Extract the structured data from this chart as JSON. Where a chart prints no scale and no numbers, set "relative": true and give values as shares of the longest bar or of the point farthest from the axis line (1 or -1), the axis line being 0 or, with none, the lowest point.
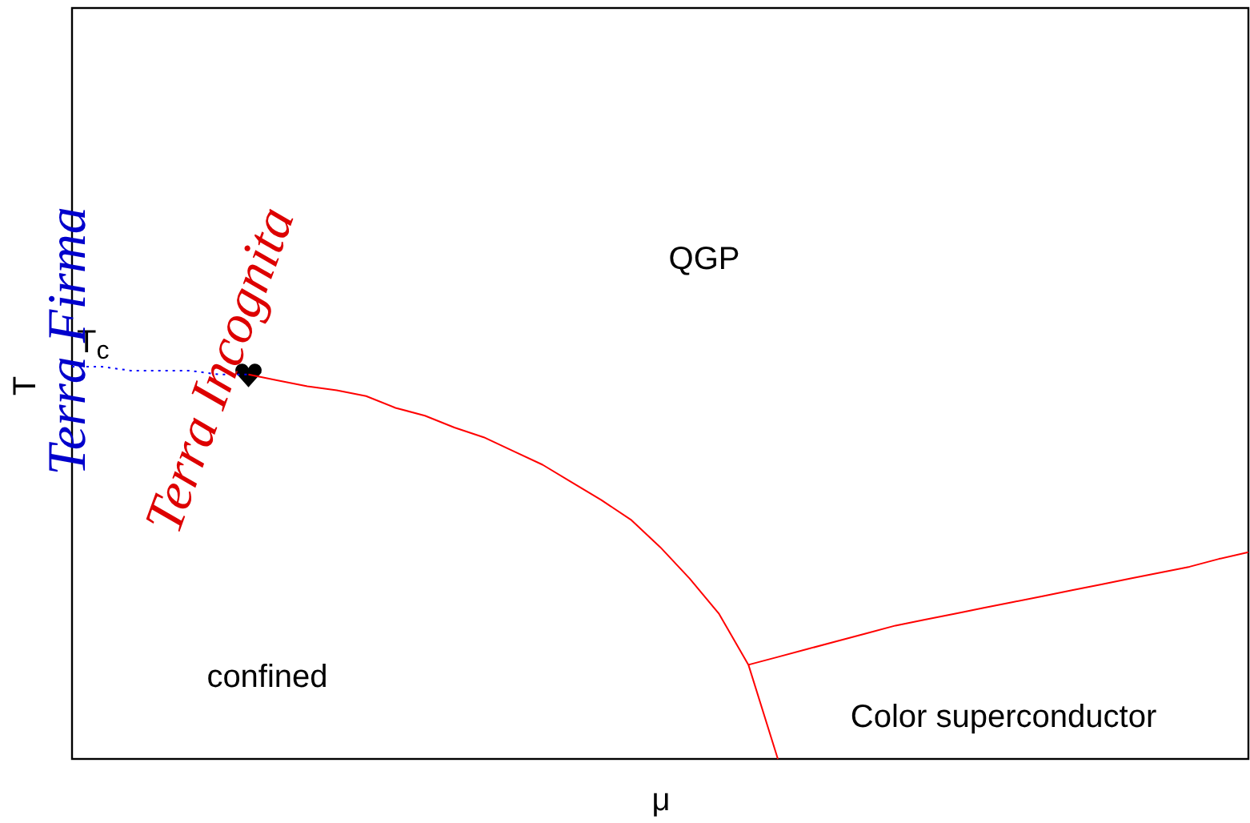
{
  "chart_data": {
    "type": "line",
    "relative": true,
    "xlabel": "μ",
    "ylabel": "T",
    "categories": [
      null,
      null,
      null,
      null,
      null,
      null,
      null,
      null,
      null,
      null,
      null,
      null,
      null,
      null,
      null,
      null,
      null,
      null,
      null,
      null,
      null,
      null,
      null,
      null,
      null,
      null,
      null,
      null,
      null,
      null,
      null,
      null,
      null,
      null,
      null,
      null,
      null,
      null,
      null,
      null,
      null
    ],
    "series": [
      {
        "color": "#0000ff",
        "line_style": "dotted",
        "values": [
          1,
          1,
          0.99,
          0.99,
          0.99,
          0.98,
          0.98,
          null,
          null,
          null,
          null,
          null,
          null,
          null,
          null,
          null,
          null,
          null,
          null,
          null,
          null,
          null,
          null,
          null,
          null,
          null,
          null,
          null,
          null,
          null,
          null,
          null,
          null,
          null,
          null,
          null,
          null,
          null,
          null,
          null,
          null
        ]
      },
      {
        "color": "#ff0000",
        "line_style": "solid",
        "values": [
          null,
          null,
          null,
          null,
          null,
          null,
          0.98,
          0.965,
          0.95,
          0.94,
          0.925,
          0.895,
          0.875,
          0.845,
          0.82,
          0.785,
          0.75,
          0.705,
          0.66,
          0.61,
          0.54,
          0.46,
          0.37,
          0.24,
          0,
          null,
          null,
          null,
          null,
          null,
          null,
          null,
          null,
          null,
          null,
          null,
          null,
          null,
          null,
          null,
          null
        ]
      },
      {
        "color": "#ff0000",
        "line_style": "solid",
        "values": [
          null,
          null,
          null,
          null,
          null,
          null,
          null,
          null,
          null,
          null,
          null,
          null,
          null,
          null,
          null,
          null,
          null,
          null,
          null,
          null,
          null,
          null,
          null,
          0.24,
          0.26,
          0.28,
          0.3,
          0.32,
          0.34,
          0.355,
          0.37,
          0.385,
          0.4,
          0.415,
          0.43,
          0.445,
          0.46,
          0.475,
          0.49,
          0.51,
          0.527
        ]
      }
    ],
    "annotations": [
      "T$_{c}$",
      "QGP",
      "confined",
      "Color superconductor",
      "Terra Firma",
      "Terra Incognita"
    ]
  }
}
